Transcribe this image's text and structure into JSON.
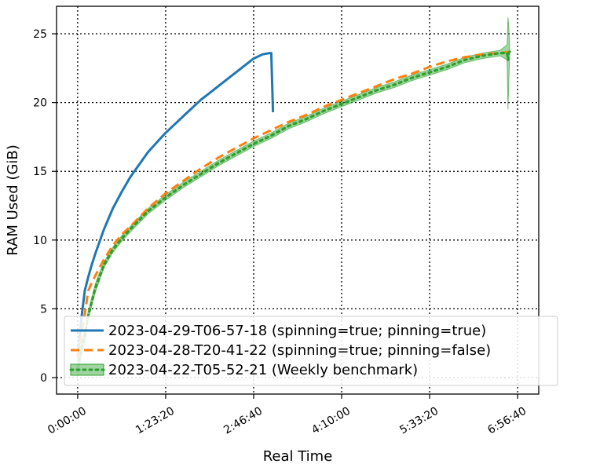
{
  "chart_data": {
    "type": "line",
    "xlabel": "Real Time",
    "ylabel": "RAM Used (GiB)",
    "xlim": [
      -1200,
      26200
    ],
    "ylim": [
      -1.2,
      27.0
    ],
    "x_ticks": [
      {
        "value": 0,
        "label": "0:00:00"
      },
      {
        "value": 5000,
        "label": "1:23:20"
      },
      {
        "value": 10000,
        "label": "2:46:40"
      },
      {
        "value": 15000,
        "label": "4:10:00"
      },
      {
        "value": 20000,
        "label": "5:33:20"
      },
      {
        "value": 25000,
        "label": "6:56:40"
      }
    ],
    "y_ticks": [
      {
        "value": 0,
        "label": "0"
      },
      {
        "value": 5,
        "label": "5"
      },
      {
        "value": 10,
        "label": "10"
      },
      {
        "value": 15,
        "label": "15"
      },
      {
        "value": 20,
        "label": "20"
      },
      {
        "value": 25,
        "label": "25"
      }
    ],
    "grid": true,
    "legend_position": "lower-right",
    "series": [
      {
        "name": "2023-04-29-T06-57-18 (spinning=true; pinning=true)",
        "color": "#1f77b4",
        "style": "solid",
        "x": [
          0,
          200,
          400,
          600,
          800,
          1000,
          1500,
          2000,
          2500,
          3000,
          3500,
          4000,
          4500,
          5000,
          5500,
          6000,
          6500,
          7000,
          7500,
          8000,
          8500,
          9000,
          9500,
          10000,
          10500,
          10900,
          11000,
          11050,
          11100
        ],
        "y": [
          1.5,
          4.2,
          6.3,
          7.3,
          8.2,
          9.0,
          10.8,
          12.3,
          13.5,
          14.6,
          15.5,
          16.4,
          17.1,
          17.8,
          18.4,
          19.0,
          19.6,
          20.2,
          20.7,
          21.2,
          21.7,
          22.2,
          22.7,
          23.2,
          23.5,
          23.6,
          23.6,
          21.5,
          19.3
        ]
      },
      {
        "name": "2023-04-28-T20-41-22 (spinning=true; pinning=false)",
        "color": "#ff7f0e",
        "style": "dashed",
        "x": [
          0,
          200,
          400,
          600,
          800,
          1000,
          1500,
          2000,
          2500,
          3000,
          4000,
          5000,
          6000,
          7000,
          8000,
          9000,
          10000,
          11000,
          12000,
          13000,
          14000,
          15000,
          16000,
          17000,
          18000,
          19000,
          20000,
          21000,
          22000,
          23000,
          24000,
          24600
        ],
        "y": [
          1.5,
          3.0,
          4.6,
          6.3,
          6.9,
          7.4,
          8.6,
          9.6,
          10.4,
          11.0,
          12.3,
          13.4,
          14.3,
          15.2,
          16.0,
          16.7,
          17.4,
          18.0,
          18.6,
          19.1,
          19.7,
          20.2,
          20.7,
          21.2,
          21.7,
          22.1,
          22.6,
          23.0,
          23.3,
          23.5,
          23.6,
          23.7
        ]
      },
      {
        "name": "2023-04-22-T05-52-21 (Weekly benchmark)",
        "color": "#2ca02c",
        "style": "dotted",
        "band": true,
        "x": [
          0,
          200,
          400,
          600,
          800,
          1000,
          1200,
          1500,
          2000,
          2500,
          3000,
          4000,
          5000,
          6000,
          7000,
          8000,
          9000,
          10000,
          11000,
          12000,
          13000,
          14000,
          15000,
          16000,
          17000,
          18000,
          19000,
          20000,
          21000,
          22000,
          23000,
          24000,
          24400,
          24450,
          24500,
          24550
        ],
        "y": [
          0.8,
          2.0,
          3.0,
          4.5,
          5.5,
          6.5,
          7.2,
          8.2,
          9.3,
          10.1,
          10.8,
          12.1,
          13.1,
          14.0,
          14.8,
          15.6,
          16.3,
          17.0,
          17.6,
          18.3,
          18.8,
          19.4,
          19.9,
          20.4,
          20.9,
          21.3,
          21.8,
          22.2,
          22.6,
          23.1,
          23.4,
          23.6,
          23.6,
          23.1,
          23.6,
          23.7
        ],
        "band_low": [
          0.0,
          1.6,
          2.6,
          4.2,
          5.2,
          6.2,
          6.9,
          8.0,
          9.1,
          9.9,
          10.6,
          11.9,
          12.9,
          13.8,
          14.6,
          15.4,
          16.1,
          16.8,
          17.4,
          18.1,
          18.6,
          19.2,
          19.7,
          20.2,
          20.7,
          21.1,
          21.6,
          22.0,
          22.4,
          22.9,
          23.2,
          23.4,
          23.1,
          19.5,
          21.5,
          23.5
        ],
        "band_high": [
          1.6,
          2.4,
          3.4,
          4.8,
          5.8,
          6.8,
          7.5,
          8.4,
          9.5,
          10.3,
          11.0,
          12.3,
          13.3,
          14.2,
          15.0,
          15.8,
          16.5,
          17.2,
          17.8,
          18.5,
          19.0,
          19.6,
          20.1,
          20.6,
          21.1,
          21.5,
          22.0,
          22.4,
          22.8,
          23.3,
          23.6,
          23.8,
          24.2,
          26.2,
          25.5,
          23.9
        ]
      }
    ]
  }
}
